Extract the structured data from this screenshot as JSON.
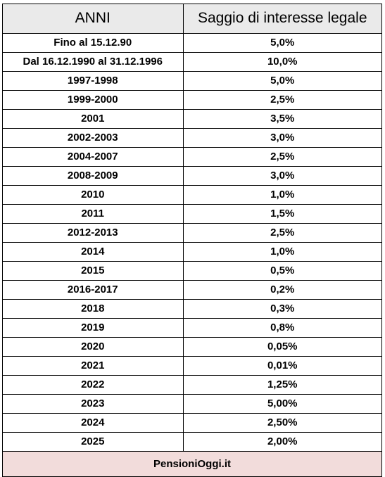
{
  "table": {
    "headers": {
      "year": "ANNI",
      "rate": "Saggio di interesse legale"
    },
    "rows": [
      {
        "period": "Fino al 15.12.90",
        "rate": "5,0%"
      },
      {
        "period": "Dal 16.12.1990 al 31.12.1996",
        "rate": "10,0%"
      },
      {
        "period": "1997-1998",
        "rate": "5,0%"
      },
      {
        "period": "1999-2000",
        "rate": "2,5%"
      },
      {
        "period": "2001",
        "rate": "3,5%"
      },
      {
        "period": "2002-2003",
        "rate": "3,0%"
      },
      {
        "period": "2004-2007",
        "rate": "2,5%"
      },
      {
        "period": "2008-2009",
        "rate": "3,0%"
      },
      {
        "period": "2010",
        "rate": "1,0%"
      },
      {
        "period": "2011",
        "rate": "1,5%"
      },
      {
        "period": "2012-2013",
        "rate": "2,5%"
      },
      {
        "period": "2014",
        "rate": "1,0%"
      },
      {
        "period": "2015",
        "rate": "0,5%"
      },
      {
        "period": "2016-2017",
        "rate": "0,2%"
      },
      {
        "period": "2018",
        "rate": "0,3%"
      },
      {
        "period": "2019",
        "rate": "0,8%"
      },
      {
        "period": "2020",
        "rate": "0,05%"
      },
      {
        "period": "2021",
        "rate": "0,01%"
      },
      {
        "period": "2022",
        "rate": "1,25%"
      },
      {
        "period": "2023",
        "rate": "5,00%"
      },
      {
        "period": "2024",
        "rate": "2,50%"
      },
      {
        "period": "2025",
        "rate": "2,00%"
      }
    ],
    "footer": "PensioniOggi.it"
  },
  "colors": {
    "header_bg": "#eaeaea",
    "footer_bg": "#f2dcdb",
    "border": "#000000"
  }
}
